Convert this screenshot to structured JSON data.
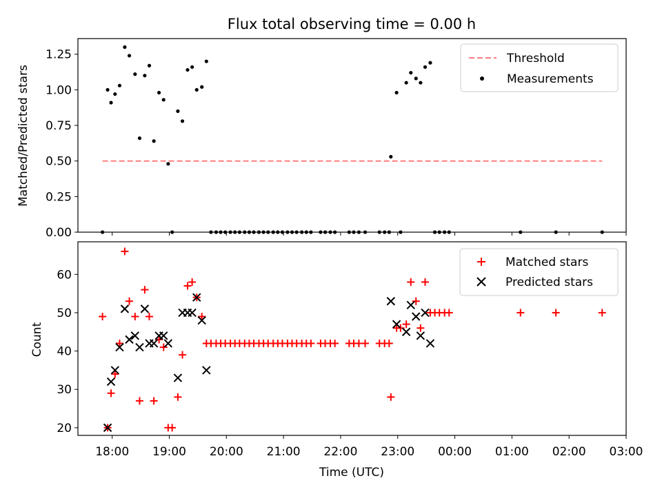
{
  "chart_data": [
    {
      "type": "scatter",
      "title": "Flux total observing time = 0.00 h",
      "xlabel": "",
      "ylabel": "Matched/Predicted stars",
      "xlim": [
        17.4,
        27.0
      ],
      "ylim": [
        0.0,
        1.36
      ],
      "xticks": [
        18,
        19,
        20,
        21,
        22,
        23,
        24,
        25,
        26,
        27
      ],
      "yticks": [
        0.0,
        0.25,
        0.5,
        0.75,
        1.0,
        1.25
      ],
      "ytick_labels": [
        "0.00",
        "0.25",
        "0.50",
        "0.75",
        "1.00",
        "1.25"
      ],
      "legend": {
        "placement": "top-right",
        "entries": [
          "Threshold",
          "Measurements"
        ]
      },
      "threshold": {
        "name": "Threshold",
        "value": 0.5,
        "x_range": [
          17.83,
          26.58
        ],
        "color": "#ff7f7f"
      },
      "series": [
        {
          "name": "Measurements",
          "marker": "dot",
          "color": "#000000",
          "points": [
            [
              17.83,
              0.0
            ],
            [
              17.92,
              1.0
            ],
            [
              17.98,
              0.91
            ],
            [
              18.05,
              0.97
            ],
            [
              18.13,
              1.03
            ],
            [
              18.22,
              1.3
            ],
            [
              18.3,
              1.24
            ],
            [
              18.4,
              1.11
            ],
            [
              18.48,
              0.66
            ],
            [
              18.57,
              1.1
            ],
            [
              18.65,
              1.17
            ],
            [
              18.73,
              0.64
            ],
            [
              18.82,
              0.98
            ],
            [
              18.9,
              0.93
            ],
            [
              18.98,
              0.48
            ],
            [
              19.05,
              0.0
            ],
            [
              19.15,
              0.85
            ],
            [
              19.23,
              0.78
            ],
            [
              19.32,
              1.14
            ],
            [
              19.4,
              1.16
            ],
            [
              19.48,
              1.0
            ],
            [
              19.57,
              1.02
            ],
            [
              19.65,
              1.2
            ],
            [
              19.73,
              0.0
            ],
            [
              19.82,
              0.0
            ],
            [
              19.9,
              0.0
            ],
            [
              19.98,
              0.0
            ],
            [
              20.07,
              0.0
            ],
            [
              20.15,
              0.0
            ],
            [
              20.23,
              0.0
            ],
            [
              20.32,
              0.0
            ],
            [
              20.4,
              0.0
            ],
            [
              20.48,
              0.0
            ],
            [
              20.57,
              0.0
            ],
            [
              20.65,
              0.0
            ],
            [
              20.73,
              0.0
            ],
            [
              20.82,
              0.0
            ],
            [
              20.9,
              0.0
            ],
            [
              20.98,
              0.0
            ],
            [
              21.07,
              0.0
            ],
            [
              21.15,
              0.0
            ],
            [
              21.23,
              0.0
            ],
            [
              21.32,
              0.0
            ],
            [
              21.4,
              0.0
            ],
            [
              21.48,
              0.0
            ],
            [
              21.65,
              0.0
            ],
            [
              21.73,
              0.0
            ],
            [
              21.82,
              0.0
            ],
            [
              21.9,
              0.0
            ],
            [
              22.15,
              0.0
            ],
            [
              22.23,
              0.0
            ],
            [
              22.32,
              0.0
            ],
            [
              22.43,
              0.0
            ],
            [
              22.68,
              0.0
            ],
            [
              22.77,
              0.0
            ],
            [
              22.85,
              0.0
            ],
            [
              22.88,
              0.53
            ],
            [
              22.98,
              0.98
            ],
            [
              23.05,
              0.0
            ],
            [
              23.15,
              1.05
            ],
            [
              23.23,
              1.12
            ],
            [
              23.32,
              1.08
            ],
            [
              23.4,
              1.05
            ],
            [
              23.48,
              1.16
            ],
            [
              23.57,
              1.19
            ],
            [
              23.65,
              0.0
            ],
            [
              23.73,
              0.0
            ],
            [
              23.82,
              0.0
            ],
            [
              23.9,
              0.0
            ],
            [
              25.15,
              0.0
            ],
            [
              25.77,
              0.0
            ],
            [
              26.58,
              0.0
            ]
          ]
        }
      ]
    },
    {
      "type": "scatter",
      "title": "",
      "xlabel": "Time (UTC)",
      "ylabel": "Count",
      "xlim": [
        17.4,
        27.0
      ],
      "ylim": [
        18.0,
        68.5
      ],
      "xticks": [
        18,
        19,
        20,
        21,
        22,
        23,
        24,
        25,
        26,
        27
      ],
      "xtick_labels": [
        "18:00",
        "19:00",
        "20:00",
        "21:00",
        "22:00",
        "23:00",
        "00:00",
        "01:00",
        "02:00",
        "03:00"
      ],
      "yticks": [
        20,
        30,
        40,
        50,
        60
      ],
      "ytick_labels": [
        "20",
        "30",
        "40",
        "50",
        "60"
      ],
      "legend": {
        "placement": "top-right",
        "entries": [
          "Matched stars",
          "Predicted stars"
        ]
      },
      "series": [
        {
          "name": "Matched stars",
          "marker": "plus",
          "color": "#ff0000",
          "points": [
            [
              17.83,
              49
            ],
            [
              17.92,
              20
            ],
            [
              17.98,
              29
            ],
            [
              18.05,
              34
            ],
            [
              18.13,
              42
            ],
            [
              18.22,
              66
            ],
            [
              18.3,
              53
            ],
            [
              18.4,
              49
            ],
            [
              18.48,
              27
            ],
            [
              18.57,
              56
            ],
            [
              18.65,
              49
            ],
            [
              18.73,
              27
            ],
            [
              18.82,
              43
            ],
            [
              18.9,
              41
            ],
            [
              18.98,
              20
            ],
            [
              19.05,
              20
            ],
            [
              19.15,
              28
            ],
            [
              19.23,
              39
            ],
            [
              19.32,
              57
            ],
            [
              19.4,
              58
            ],
            [
              19.48,
              54
            ],
            [
              19.57,
              49
            ],
            [
              19.65,
              42
            ],
            [
              19.73,
              42
            ],
            [
              19.82,
              42
            ],
            [
              19.9,
              42
            ],
            [
              19.98,
              42
            ],
            [
              20.07,
              42
            ],
            [
              20.15,
              42
            ],
            [
              20.23,
              42
            ],
            [
              20.32,
              42
            ],
            [
              20.4,
              42
            ],
            [
              20.48,
              42
            ],
            [
              20.57,
              42
            ],
            [
              20.65,
              42
            ],
            [
              20.73,
              42
            ],
            [
              20.82,
              42
            ],
            [
              20.9,
              42
            ],
            [
              20.98,
              42
            ],
            [
              21.07,
              42
            ],
            [
              21.15,
              42
            ],
            [
              21.23,
              42
            ],
            [
              21.32,
              42
            ],
            [
              21.4,
              42
            ],
            [
              21.48,
              42
            ],
            [
              21.65,
              42
            ],
            [
              21.73,
              42
            ],
            [
              21.82,
              42
            ],
            [
              21.9,
              42
            ],
            [
              22.15,
              42
            ],
            [
              22.23,
              42
            ],
            [
              22.32,
              42
            ],
            [
              22.43,
              42
            ],
            [
              22.68,
              42
            ],
            [
              22.77,
              42
            ],
            [
              22.85,
              42
            ],
            [
              22.88,
              28
            ],
            [
              22.98,
              46
            ],
            [
              23.05,
              46
            ],
            [
              23.15,
              47
            ],
            [
              23.23,
              58
            ],
            [
              23.32,
              53
            ],
            [
              23.4,
              46
            ],
            [
              23.48,
              58
            ],
            [
              23.57,
              50
            ],
            [
              23.65,
              50
            ],
            [
              23.73,
              50
            ],
            [
              23.82,
              50
            ],
            [
              23.9,
              50
            ],
            [
              25.15,
              50
            ],
            [
              25.77,
              50
            ],
            [
              26.58,
              50
            ]
          ]
        },
        {
          "name": "Predicted stars",
          "marker": "cross",
          "color": "#000000",
          "points": [
            [
              17.92,
              20
            ],
            [
              17.98,
              32
            ],
            [
              18.05,
              35
            ],
            [
              18.13,
              41
            ],
            [
              18.22,
              51
            ],
            [
              18.3,
              43
            ],
            [
              18.4,
              44
            ],
            [
              18.48,
              41
            ],
            [
              18.57,
              51
            ],
            [
              18.65,
              42
            ],
            [
              18.73,
              42
            ],
            [
              18.82,
              44
            ],
            [
              18.9,
              44
            ],
            [
              18.98,
              42
            ],
            [
              19.15,
              33
            ],
            [
              19.23,
              50
            ],
            [
              19.32,
              50
            ],
            [
              19.4,
              50
            ],
            [
              19.48,
              54
            ],
            [
              19.57,
              48
            ],
            [
              19.65,
              35
            ],
            [
              22.88,
              53
            ],
            [
              22.98,
              47
            ],
            [
              23.15,
              45
            ],
            [
              23.23,
              52
            ],
            [
              23.32,
              49
            ],
            [
              23.4,
              44
            ],
            [
              23.48,
              50
            ],
            [
              23.57,
              42
            ]
          ]
        }
      ]
    }
  ]
}
